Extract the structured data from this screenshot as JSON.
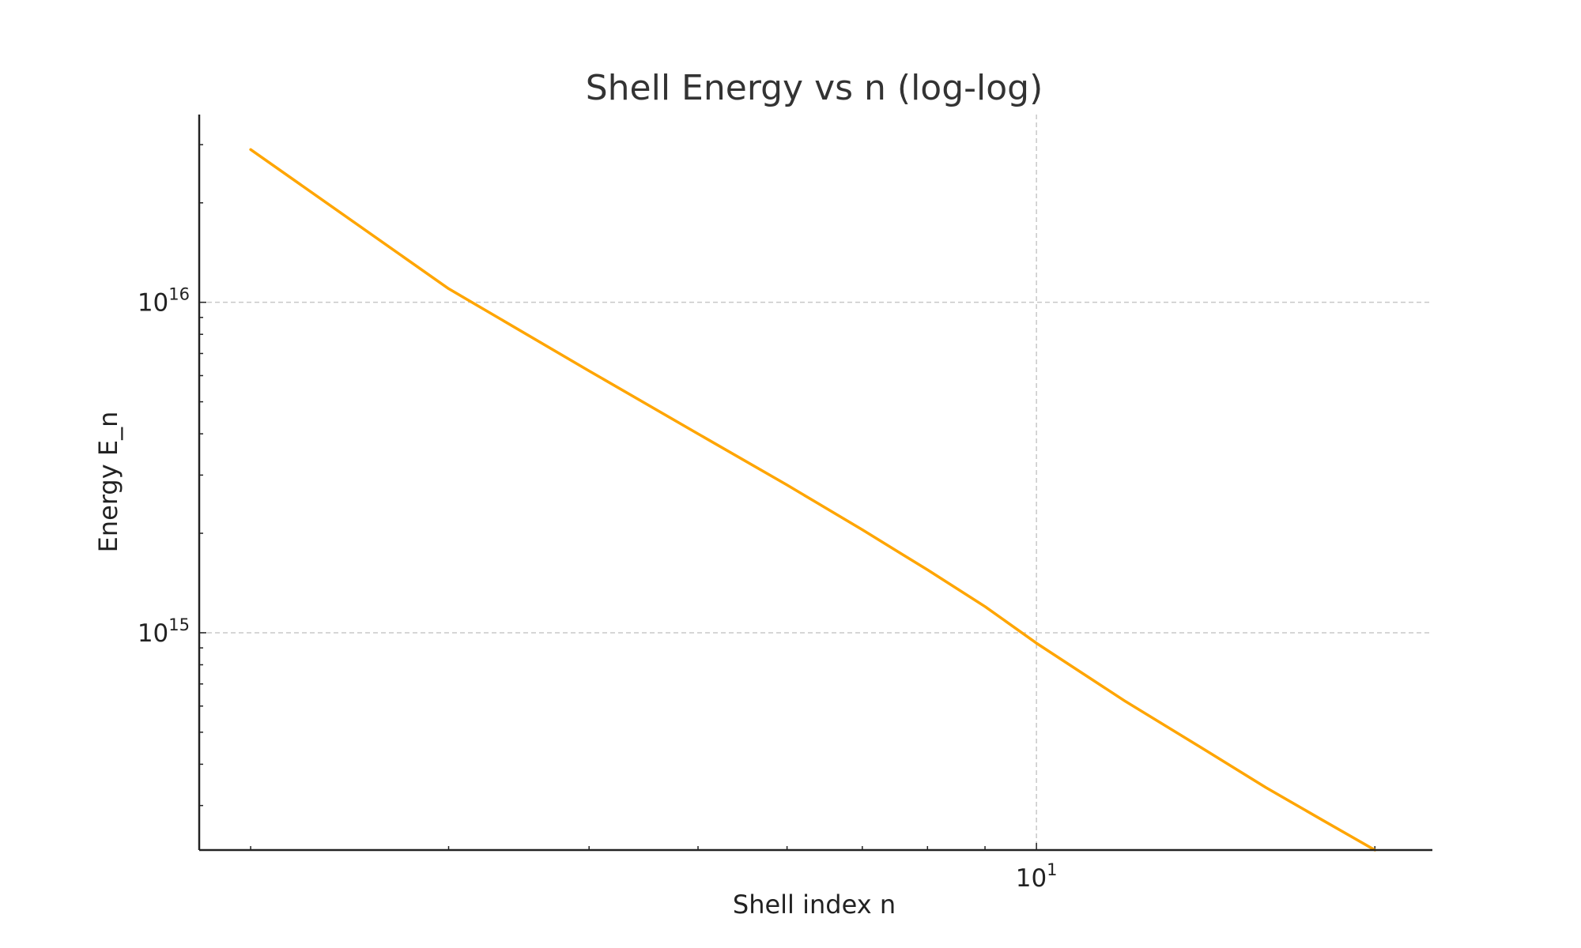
{
  "chart_data": {
    "type": "line",
    "title": "Shell Energy vs n (log-log)",
    "xlabel": "Shell index n",
    "ylabel": "Energy E_n",
    "xscale": "log",
    "yscale": "log",
    "xlim": [
      1.8,
      22.5
    ],
    "ylim": [
      220000000000000.0,
      3.7e+16
    ],
    "grid": true,
    "x_major_ticks": [
      {
        "value": 10,
        "base": "10",
        "exp": "1"
      }
    ],
    "y_major_ticks": [
      {
        "value": 1000000000000000.0,
        "base": "10",
        "exp": "15"
      },
      {
        "value": 1e+16,
        "base": "10",
        "exp": "16"
      }
    ],
    "series": [
      {
        "color": "#FFA500",
        "x": [
          2,
          3,
          4,
          5,
          6,
          7,
          8,
          9,
          10,
          12,
          14,
          16,
          18,
          20
        ],
        "y": [
          2.9e+16,
          1.1e+16,
          6200000000000000.0,
          4000000000000000.0,
          2800000000000000.0,
          2050000000000000.0,
          1550000000000000.0,
          1200000000000000.0,
          930000000000000.0,
          620000000000000.0,
          450000000000000.0,
          340000000000000.0,
          270000000000000.0,
          220000000000000.0
        ]
      }
    ]
  }
}
